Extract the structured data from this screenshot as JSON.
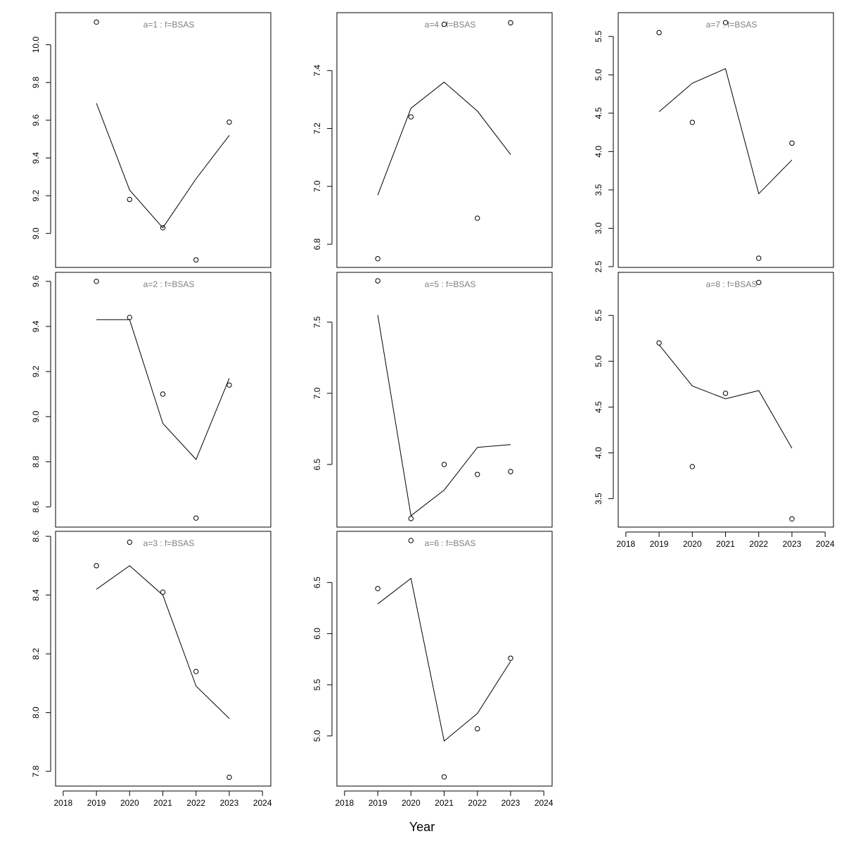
{
  "xlabel": "Year",
  "chart_data": [
    {
      "type": "line",
      "title": "a=1  :  f=BSAS",
      "x": [
        2019,
        2020,
        2021,
        2022,
        2023
      ],
      "points": [
        10.12,
        9.18,
        9.03,
        8.86,
        9.59
      ],
      "fitted": [
        9.69,
        9.23,
        9.03,
        9.29,
        9.52
      ],
      "ylim": [
        8.82,
        10.17
      ],
      "yticks": [
        "9.0",
        "9.2",
        "9.4",
        "9.6",
        "9.8",
        "10.0"
      ],
      "xticks": []
    },
    {
      "type": "line",
      "title": "a=2  :  f=BSAS",
      "x": [
        2019,
        2020,
        2021,
        2022,
        2023
      ],
      "points": [
        9.6,
        9.44,
        9.1,
        8.55,
        9.14
      ],
      "fitted": [
        9.43,
        9.43,
        8.97,
        8.81,
        9.17
      ],
      "ylim": [
        8.51,
        9.64
      ],
      "yticks": [
        "8.6",
        "8.8",
        "9.0",
        "9.2",
        "9.4",
        "9.6"
      ],
      "xticks": []
    },
    {
      "type": "line",
      "title": "a=3  :  f=BSAS",
      "x": [
        2019,
        2020,
        2021,
        2022,
        2023
      ],
      "points": [
        8.5,
        8.58,
        8.41,
        8.14,
        7.78
      ],
      "fitted": [
        8.42,
        8.5,
        8.4,
        8.09,
        7.98
      ],
      "ylim": [
        7.75,
        8.617
      ],
      "yticks": [
        "7.8",
        "8.0",
        "8.2",
        "8.4",
        "8.6"
      ],
      "xticks": [
        "2018",
        "2019",
        "2020",
        "2021",
        "2022",
        "2023",
        "2024"
      ]
    },
    {
      "type": "line",
      "title": "a=4  :  f=BSAS",
      "x": [
        2019,
        2020,
        2021,
        2022,
        2023
      ],
      "points": [
        6.75,
        7.24,
        7.56,
        6.89,
        7.565
      ],
      "fitted": [
        6.97,
        7.27,
        7.36,
        7.26,
        7.11
      ],
      "ylim": [
        6.72,
        7.6
      ],
      "yticks": [
        "6.8",
        "7.0",
        "7.2",
        "7.4"
      ],
      "xticks": []
    },
    {
      "type": "line",
      "title": "a=5  :  f=BSAS",
      "x": [
        2019,
        2020,
        2021,
        2022,
        2023
      ],
      "points": [
        7.79,
        6.12,
        6.5,
        6.43,
        6.45
      ],
      "fitted": [
        7.55,
        6.14,
        6.32,
        6.62,
        6.64
      ],
      "ylim": [
        6.06,
        7.85
      ],
      "yticks": [
        "6.5",
        "7.0",
        "7.5"
      ],
      "xticks": []
    },
    {
      "type": "line",
      "title": "a=6  :  f=BSAS",
      "x": [
        2019,
        2020,
        2021,
        2022,
        2023
      ],
      "points": [
        6.44,
        6.91,
        4.6,
        5.07,
        5.76
      ],
      "fitted": [
        6.29,
        6.54,
        4.95,
        5.22,
        5.73
      ],
      "ylim": [
        4.51,
        7.0
      ],
      "yticks": [
        "5.0",
        "5.5",
        "6.0",
        "6.5"
      ],
      "xticks": [
        "2018",
        "2019",
        "2020",
        "2021",
        "2022",
        "2023",
        "2024"
      ]
    },
    {
      "type": "line",
      "title": "a=7  :  f=BSAS",
      "x": [
        2019,
        2020,
        2021,
        2022,
        2023
      ],
      "points": [
        5.55,
        4.38,
        5.68,
        2.61,
        4.11
      ],
      "fitted": [
        4.52,
        4.89,
        5.08,
        3.45,
        3.89
      ],
      "ylim": [
        2.49,
        5.81
      ],
      "yticks": [
        "2.5",
        "3.0",
        "3.5",
        "4.0",
        "4.5",
        "5.0",
        "5.5"
      ],
      "xticks": []
    },
    {
      "type": "line",
      "title": "a=8  :  f=BSAS",
      "x": [
        2019,
        2020,
        2021,
        2022,
        2023
      ],
      "points": [
        5.2,
        3.85,
        4.65,
        5.86,
        3.28
      ],
      "fitted": [
        5.18,
        4.73,
        4.59,
        4.68,
        4.05
      ],
      "ylim": [
        3.19,
        5.97
      ],
      "yticks": [
        "3.5",
        "4.0",
        "4.5",
        "5.0",
        "5.5"
      ],
      "xticks": [
        "2018",
        "2019",
        "2020",
        "2021",
        "2022",
        "2023",
        "2024"
      ]
    }
  ]
}
